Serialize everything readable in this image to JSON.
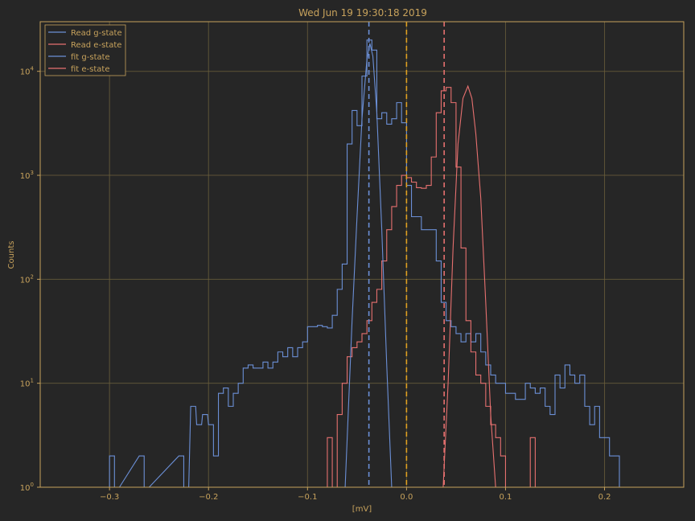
{
  "chart_data": {
    "type": "line",
    "title": "Wed Jun 19 19:30:18 2019",
    "xlabel": "[mV]",
    "ylabel": "Counts",
    "y_scale": "log",
    "xlim": [
      -0.37,
      0.28
    ],
    "ylim": [
      1,
      30000
    ],
    "x_ticks": [
      -0.3,
      -0.2,
      -0.1,
      0.0,
      0.1,
      0.2
    ],
    "x_tick_labels": [
      "−0.3",
      "−0.2",
      "−0.1",
      "0.0",
      "0.1",
      "0.2"
    ],
    "y_ticks": [
      1,
      10,
      100,
      1000,
      10000
    ],
    "y_tick_labels": [
      {
        "base": "10",
        "exp": "0"
      },
      {
        "base": "10",
        "exp": "1"
      },
      {
        "base": "10",
        "exp": "2"
      },
      {
        "base": "10",
        "exp": "3"
      },
      {
        "base": "10",
        "exp": "4"
      }
    ],
    "grid": true,
    "legend_position": "top-left",
    "colors": {
      "background": "#262626",
      "text": "#c7a25c",
      "grid": "#6b5f3c",
      "g_state": "#6b8fd6",
      "e_state": "#e6706f",
      "threshold": "#e0a020"
    },
    "series": [
      {
        "name": "Read g-state",
        "kind": "step",
        "color": "#6b8fd6",
        "x": [
          -0.3,
          -0.295,
          -0.27,
          -0.265,
          -0.23,
          -0.225,
          -0.218,
          -0.212,
          -0.206,
          -0.2,
          -0.195,
          -0.19,
          -0.185,
          -0.18,
          -0.175,
          -0.17,
          -0.165,
          -0.16,
          -0.155,
          -0.15,
          -0.145,
          -0.14,
          -0.135,
          -0.13,
          -0.125,
          -0.12,
          -0.115,
          -0.11,
          -0.105,
          -0.1,
          -0.095,
          -0.09,
          -0.085,
          -0.08,
          -0.075,
          -0.07,
          -0.065,
          -0.06,
          -0.055,
          -0.05,
          -0.045,
          -0.04,
          -0.035,
          -0.03,
          -0.025,
          -0.02,
          -0.015,
          -0.01,
          -0.005,
          0.0,
          0.005,
          0.01,
          0.015,
          0.02,
          0.025,
          0.03,
          0.035,
          0.04,
          0.045,
          0.05,
          0.055,
          0.06,
          0.065,
          0.07,
          0.075,
          0.08,
          0.085,
          0.09,
          0.095,
          0.1,
          0.105,
          0.11,
          0.115,
          0.12,
          0.125,
          0.13,
          0.135,
          0.14,
          0.145,
          0.15,
          0.155,
          0.16,
          0.165,
          0.17,
          0.175,
          0.18,
          0.185,
          0.19,
          0.195,
          0.2,
          0.205,
          0.21
        ],
        "y": [
          2,
          1,
          2,
          1,
          2,
          1,
          6,
          4,
          5,
          4,
          2,
          8,
          9,
          6,
          8,
          10,
          14,
          15,
          14,
          14,
          16,
          14,
          16,
          20,
          18,
          22,
          18,
          22,
          25,
          35,
          35,
          36,
          35,
          34,
          45,
          80,
          140,
          2000,
          4200,
          3000,
          9000,
          20000,
          16000,
          3500,
          4000,
          3100,
          3500,
          5000,
          3200,
          800,
          400,
          400,
          300,
          300,
          300,
          150,
          60,
          40,
          35,
          30,
          25,
          30,
          25,
          30,
          20,
          15,
          12,
          10,
          10,
          8,
          8,
          7,
          7,
          10,
          9,
          8,
          9,
          6,
          5,
          12,
          9,
          15,
          12,
          10,
          12,
          6,
          4,
          6,
          3,
          3,
          2,
          2
        ]
      },
      {
        "name": "Read e-state",
        "kind": "step",
        "color": "#e6706f",
        "x": [
          -0.08,
          -0.075,
          -0.07,
          -0.065,
          -0.06,
          -0.055,
          -0.05,
          -0.045,
          -0.04,
          -0.035,
          -0.03,
          -0.025,
          -0.02,
          -0.015,
          -0.01,
          -0.005,
          0.0,
          0.005,
          0.01,
          0.015,
          0.02,
          0.025,
          0.03,
          0.035,
          0.04,
          0.045,
          0.05,
          0.055,
          0.06,
          0.065,
          0.07,
          0.075,
          0.08,
          0.085,
          0.09,
          0.095,
          0.1,
          0.105,
          0.11,
          0.115,
          0.12,
          0.125,
          0.13
        ],
        "y": [
          3,
          1,
          5,
          10,
          18,
          22,
          25,
          30,
          40,
          60,
          80,
          150,
          300,
          500,
          800,
          1000,
          950,
          860,
          760,
          750,
          800,
          1500,
          4000,
          6500,
          7000,
          5000,
          1200,
          200,
          40,
          20,
          12,
          10,
          6,
          4,
          3,
          2,
          1,
          1,
          1,
          1,
          1,
          3,
          1
        ]
      },
      {
        "name": "fit g-state",
        "kind": "line",
        "color": "#6b8fd6",
        "x": [
          -0.062,
          -0.055,
          -0.05,
          -0.045,
          -0.04,
          -0.037,
          -0.034,
          -0.03,
          -0.025,
          -0.02,
          -0.015
        ],
        "y": [
          1,
          40,
          400,
          3500,
          13000,
          18500,
          14000,
          4000,
          300,
          15,
          1
        ]
      },
      {
        "name": "fit e-state",
        "kind": "line",
        "color": "#e6706f",
        "x": [
          0.037,
          0.042,
          0.047,
          0.052,
          0.057,
          0.062,
          0.066,
          0.07,
          0.075,
          0.08,
          0.085,
          0.09
        ],
        "y": [
          1,
          10,
          200,
          2000,
          5500,
          7200,
          5500,
          2500,
          600,
          60,
          5,
          1
        ]
      }
    ],
    "vlines": [
      {
        "x": -0.038,
        "color": "#6b8fd6",
        "style": "dashed"
      },
      {
        "x": 0.0,
        "color": "#e0a020",
        "style": "dashed"
      },
      {
        "x": 0.038,
        "color": "#e6706f",
        "style": "dashed"
      }
    ]
  }
}
